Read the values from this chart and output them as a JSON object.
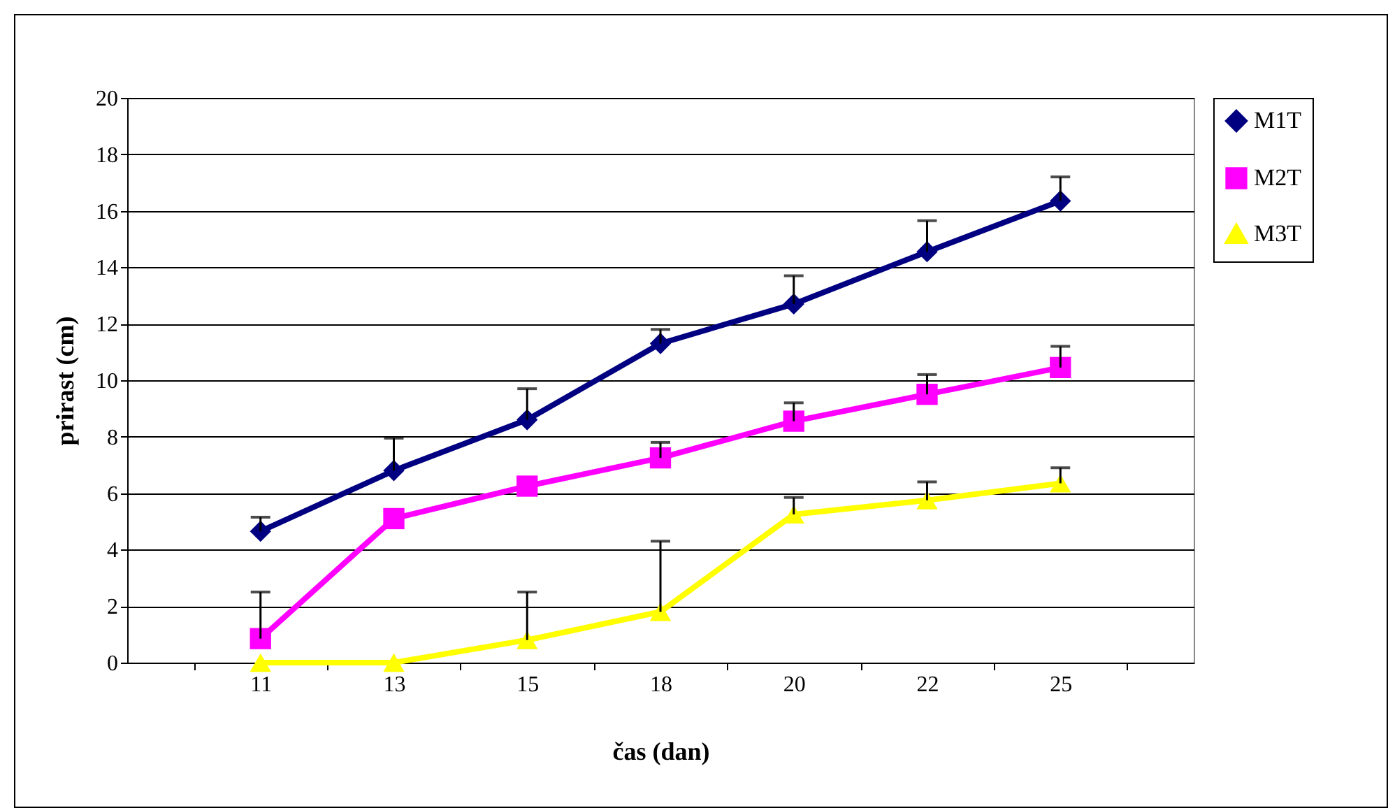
{
  "chart_data": {
    "type": "line",
    "xlabel": "čas (dan)",
    "ylabel": "prirast (cm)",
    "categories": [
      "11",
      "13",
      "15",
      "18",
      "20",
      "22",
      "25"
    ],
    "ylim": [
      0,
      20
    ],
    "yticks": [
      0,
      2,
      4,
      6,
      8,
      10,
      12,
      14,
      16,
      18,
      20
    ],
    "grid": "y",
    "legend": "right",
    "line_style": "solid",
    "series": [
      {
        "name": "M1T",
        "color": "#000080",
        "marker": "diamond",
        "values": [
          4.65,
          6.8,
          8.6,
          11.3,
          12.7,
          14.55,
          16.35
        ],
        "errors": [
          [
            4.65,
            5.15
          ],
          [
            6.8,
            7.95
          ],
          [
            8.6,
            9.7
          ],
          [
            11.3,
            11.8
          ],
          [
            12.7,
            13.7
          ],
          [
            14.55,
            15.65
          ],
          [
            16.35,
            17.2
          ]
        ]
      },
      {
        "name": "M2T",
        "color": "#ff00ff",
        "marker": "square",
        "values": [
          0.85,
          5.1,
          6.25,
          7.25,
          8.55,
          9.5,
          10.45
        ],
        "errors": [
          [
            0.85,
            2.5
          ],
          null,
          null,
          [
            7.25,
            7.8
          ],
          [
            8.55,
            9.2
          ],
          [
            9.5,
            10.2
          ],
          [
            10.45,
            11.2
          ]
        ]
      },
      {
        "name": "M3T",
        "color": "#ffff00",
        "marker": "triangle",
        "values": [
          0,
          0,
          0.8,
          1.8,
          5.25,
          5.75,
          6.35
        ],
        "errors": [
          null,
          null,
          [
            0.8,
            2.5
          ],
          [
            1.8,
            4.3
          ],
          [
            5.25,
            5.85
          ],
          [
            5.75,
            6.4
          ],
          [
            6.35,
            6.9
          ]
        ]
      }
    ]
  }
}
